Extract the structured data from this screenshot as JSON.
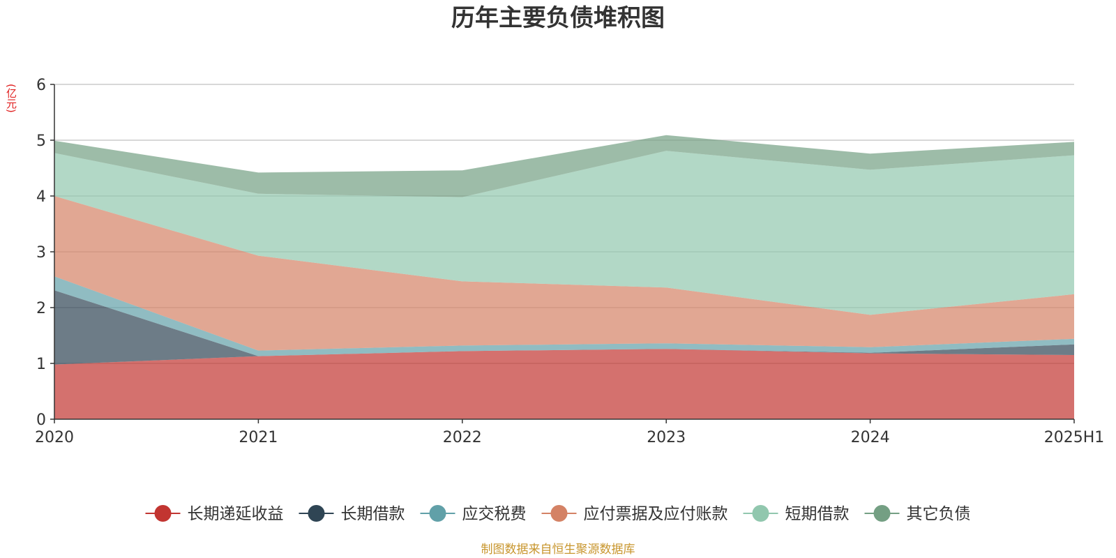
{
  "source": "制图数据来自恒生聚源数据库",
  "chart_data": {
    "type": "area",
    "title": "历年主要负债堆积图",
    "y_unit": "(亿元)",
    "stacked": true,
    "x": [
      "2020",
      "2021",
      "2022",
      "2023",
      "2024",
      "2025H1"
    ],
    "ylim": [
      0,
      6
    ],
    "yticks": [
      "0",
      "1",
      "2",
      "3",
      "4",
      "5",
      "6"
    ],
    "grid": true,
    "legend_position": "bottom",
    "series": [
      {
        "name": "长期递延收益",
        "color": "#c23531",
        "values": [
          0.98,
          1.13,
          1.22,
          1.26,
          1.18,
          1.15
        ]
      },
      {
        "name": "长期借款",
        "color": "#2f4554",
        "values": [
          1.33,
          0.0,
          0.0,
          0.0,
          0.01,
          0.19
        ]
      },
      {
        "name": "应交税费",
        "color": "#61a0a8",
        "values": [
          0.25,
          0.1,
          0.1,
          0.1,
          0.1,
          0.1
        ]
      },
      {
        "name": "应付票据及应付账款",
        "color": "#d48265",
        "values": [
          1.44,
          1.7,
          1.15,
          1.0,
          0.58,
          0.8
        ]
      },
      {
        "name": "短期借款",
        "color": "#91c7ae",
        "values": [
          0.77,
          1.11,
          1.51,
          2.45,
          2.6,
          2.49
        ]
      },
      {
        "name": "其它负债",
        "color": "#749f83",
        "values": [
          0.22,
          0.38,
          0.48,
          0.28,
          0.29,
          0.24
        ]
      }
    ]
  }
}
